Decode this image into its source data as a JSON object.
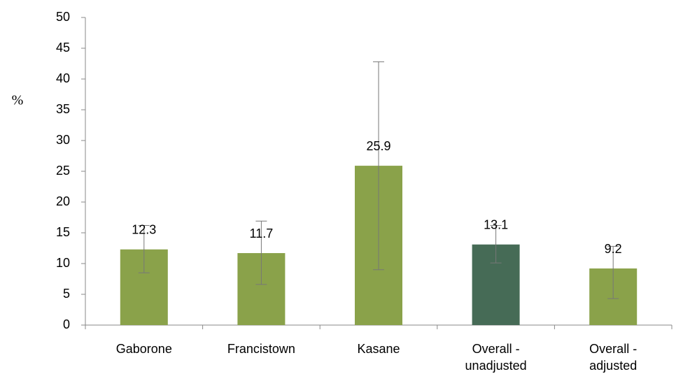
{
  "chart_data": {
    "type": "bar",
    "ylabel": "%",
    "categories": [
      "Gaborone",
      "Francistown",
      "Kasane",
      "Overall - unadjusted",
      "Overall - adjusted"
    ],
    "values": [
      12.3,
      11.7,
      25.9,
      13.1,
      9.2
    ],
    "ci_low": [
      8.5,
      6.6,
      9.0,
      10.1,
      4.3
    ],
    "ci_high": [
      16.2,
      16.9,
      42.8,
      16.2,
      12.8
    ],
    "colors": [
      "#8aa24a",
      "#8aa24a",
      "#8aa24a",
      "#466b56",
      "#8aa24a"
    ],
    "ylim": [
      0,
      50
    ],
    "yticks": [
      0,
      5,
      10,
      15,
      20,
      25,
      30,
      35,
      40,
      45,
      50
    ]
  }
}
